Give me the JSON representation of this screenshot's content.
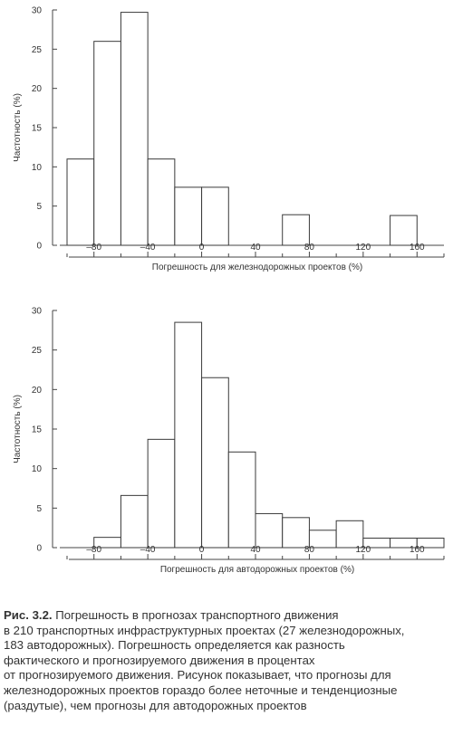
{
  "chart_data": [
    {
      "type": "bar",
      "xlabel": "Погрешность для железнодорожных проектов (%)",
      "ylabel": "Частотность (%)",
      "ylim": [
        0,
        30
      ],
      "yticks": [
        "0",
        "5",
        "10",
        "15",
        "20",
        "25",
        "30"
      ],
      "xlim": [
        -100,
        180
      ],
      "xticks": [
        "–80",
        "–40",
        "0",
        "40",
        "80",
        "120",
        "160"
      ],
      "bin_width": 20,
      "bins": [
        {
          "x0": -100,
          "value": 11
        },
        {
          "x0": -80,
          "value": 26
        },
        {
          "x0": -60,
          "value": 29.7
        },
        {
          "x0": -40,
          "value": 11
        },
        {
          "x0": -20,
          "value": 7.4
        },
        {
          "x0": 0,
          "value": 7.4
        },
        {
          "x0": 60,
          "value": 3.9
        },
        {
          "x0": 140,
          "value": 3.8
        }
      ]
    },
    {
      "type": "bar",
      "xlabel": "Погрешность для автодорожных проектов (%)",
      "ylabel": "Частотность (%)",
      "ylim": [
        0,
        30
      ],
      "yticks": [
        "0",
        "5",
        "10",
        "15",
        "20",
        "25",
        "30"
      ],
      "xlim": [
        -100,
        180
      ],
      "xticks": [
        "–80",
        "–40",
        "0",
        "40",
        "80",
        "120",
        "160"
      ],
      "bin_width": 20,
      "bins": [
        {
          "x0": -80,
          "value": 1.3
        },
        {
          "x0": -60,
          "value": 6.6
        },
        {
          "x0": -40,
          "value": 13.7
        },
        {
          "x0": -20,
          "value": 28.5
        },
        {
          "x0": 0,
          "value": 21.5
        },
        {
          "x0": 20,
          "value": 12.1
        },
        {
          "x0": 40,
          "value": 4.3
        },
        {
          "x0": 60,
          "value": 3.8
        },
        {
          "x0": 80,
          "value": 2.2
        },
        {
          "x0": 100,
          "value": 3.4
        },
        {
          "x0": 120,
          "value": 1.2
        },
        {
          "x0": 140,
          "value": 1.2
        },
        {
          "x0": 160,
          "value": 1.2
        }
      ]
    }
  ],
  "caption": {
    "label": "Рис. 3.2.",
    "lines": [
      " Погрешность в прогнозах транспортного движения",
      "в 210 транспортных инфраструктурных проектах (27 железнодорожных,",
      "183 автодорожных). Погрешность определяется как разность",
      "фактического и прогнозируемого движения в процентах",
      "от прогнозируемого движения. Рисунок показывает, что прогнозы для",
      "железнодорожных проектов гораздо более неточные и тенденциозные",
      "(раздутые), чем прогнозы для автодорожных проектов"
    ]
  }
}
